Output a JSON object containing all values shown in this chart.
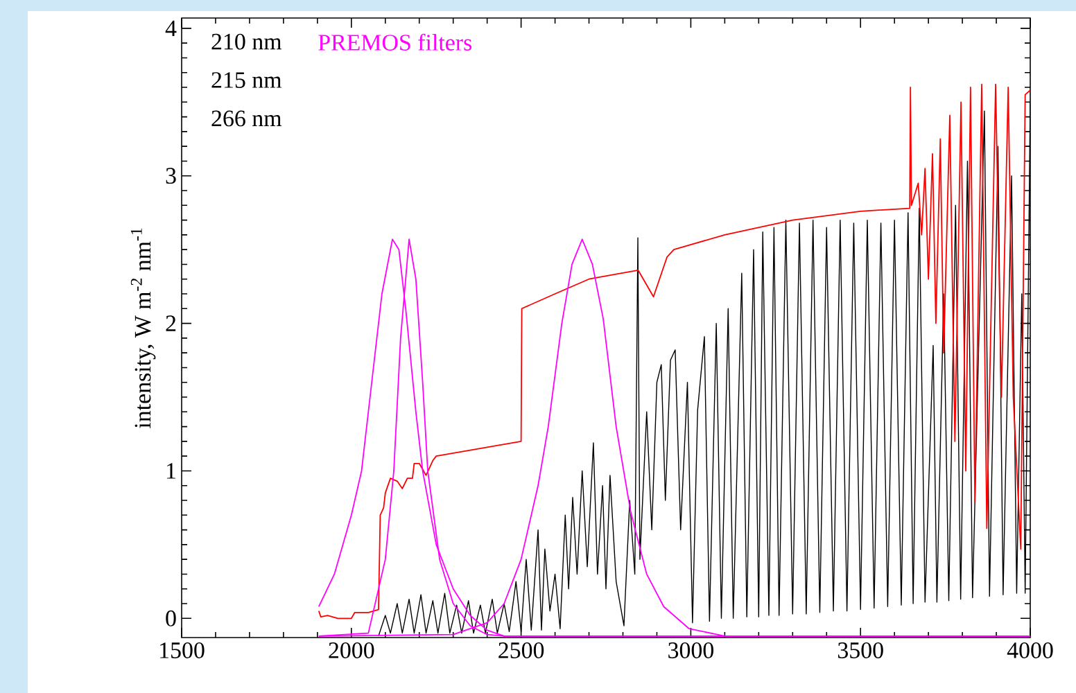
{
  "chart_data": {
    "type": "line",
    "ylabel": "intensity, W m$^{-2}$ nm$^{-1}$",
    "annotations": [
      "210 nm",
      "215 nm",
      "266 nm",
      "PREMOS filters"
    ],
    "xlim": [
      1500,
      4000
    ],
    "xticks": [
      1500,
      2000,
      2500,
      3000,
      3500,
      4000
    ],
    "ylim": [
      -0.13,
      4.07
    ],
    "yticks": [
      0,
      1,
      2,
      3,
      4
    ],
    "grid": false,
    "marker": "none",
    "line_style": "solid",
    "series": [
      {
        "color": "#000000",
        "x": [
          2080,
          2100,
          2115,
          2135,
          2150,
          2170,
          2185,
          2205,
          2220,
          2240,
          2255,
          2275,
          2290,
          2310,
          2325,
          2345,
          2360,
          2380,
          2395,
          2415,
          2430,
          2450,
          2465,
          2485,
          2500,
          2515,
          2530,
          2550,
          2560,
          2570,
          2585,
          2600,
          2615,
          2630,
          2640,
          2652,
          2665,
          2680,
          2695,
          2713,
          2725,
          2740,
          2750,
          2762,
          2780,
          2803,
          2820,
          2835,
          2844,
          2850,
          2870,
          2885,
          2900,
          2913,
          2925,
          2940,
          2954,
          2970,
          2990,
          3005,
          3020,
          3040,
          3055,
          3075,
          3090,
          3110,
          3125,
          3150,
          3165,
          3185,
          3200,
          3212,
          3230,
          3245,
          3260,
          3280,
          3300,
          3320,
          3340,
          3360,
          3380,
          3400,
          3420,
          3440,
          3460,
          3480,
          3500,
          3520,
          3540,
          3560,
          3580,
          3600,
          3620,
          3640,
          3655,
          3673,
          3690,
          3714,
          3725,
          3745,
          3760,
          3780,
          3795,
          3815,
          3830,
          3865,
          3880,
          3905,
          3920,
          3945,
          3960,
          3975,
          3985,
          4000
        ],
        "values": [
          -0.12,
          0.02,
          -0.1,
          0.1,
          -0.1,
          0.13,
          -0.1,
          0.16,
          -0.1,
          0.12,
          -0.1,
          0.17,
          -0.1,
          0.09,
          -0.1,
          0.12,
          -0.1,
          0.09,
          -0.1,
          0.13,
          -0.1,
          0.1,
          -0.09,
          0.25,
          -0.09,
          0.4,
          -0.08,
          0.6,
          -0.08,
          0.47,
          0.05,
          0.3,
          -0.07,
          0.7,
          0.2,
          0.82,
          0.3,
          1.0,
          0.35,
          1.19,
          0.3,
          0.9,
          0.2,
          0.97,
          0.25,
          -0.05,
          0.8,
          0.3,
          2.58,
          0.4,
          1.4,
          0.6,
          1.6,
          1.72,
          0.8,
          1.75,
          1.82,
          0.6,
          1.6,
          -0.03,
          1.41,
          1.91,
          -0.02,
          2.0,
          0.0,
          2.1,
          0.0,
          2.34,
          0.01,
          2.5,
          0.01,
          2.62,
          0.02,
          2.65,
          0.02,
          2.7,
          0.03,
          2.68,
          0.03,
          2.7,
          0.04,
          2.65,
          0.05,
          2.7,
          0.05,
          2.68,
          0.06,
          2.7,
          0.07,
          2.68,
          0.08,
          2.7,
          0.09,
          2.75,
          0.1,
          2.78,
          0.11,
          1.85,
          0.11,
          2.2,
          0.12,
          2.8,
          0.13,
          3.1,
          0.14,
          3.44,
          0.15,
          3.2,
          0.16,
          3.0,
          0.17,
          2.2,
          0.17,
          3.5
        ]
      },
      {
        "color": "#ff0000",
        "x": [
          1904,
          1910,
          1930,
          1960,
          2000,
          2010,
          2050,
          2080,
          2085,
          2095,
          2100,
          2115,
          2135,
          2150,
          2165,
          2180,
          2185,
          2200,
          2220,
          2240,
          2250,
          2500,
          2502,
          2600,
          2700,
          2845,
          2890,
          2930,
          2950,
          3100,
          3300,
          3500,
          3645,
          3647,
          3650,
          3670,
          3680,
          3690,
          3700,
          3712,
          3722,
          3735,
          3745,
          3763,
          3778,
          3796,
          3810,
          3824,
          3837,
          3857,
          3872,
          3898,
          3915,
          3935,
          3950,
          3972,
          3985,
          4000
        ],
        "values": [
          0.05,
          0.01,
          0.02,
          0.0,
          0.0,
          0.04,
          0.04,
          0.06,
          0.7,
          0.75,
          0.85,
          0.95,
          0.93,
          0.88,
          0.95,
          0.95,
          1.05,
          1.05,
          0.97,
          1.07,
          1.1,
          1.2,
          2.1,
          2.2,
          2.3,
          2.36,
          2.18,
          2.45,
          2.5,
          2.6,
          2.7,
          2.76,
          2.78,
          3.6,
          2.8,
          2.95,
          2.6,
          3.05,
          2.3,
          3.15,
          2.0,
          3.25,
          1.8,
          3.41,
          1.2,
          3.5,
          1.0,
          3.6,
          0.79,
          3.62,
          0.61,
          3.62,
          1.5,
          3.6,
          1.5,
          0.47,
          3.55,
          3.58
        ]
      },
      {
        "color": "#ff00ff",
        "x": [
          1904,
          1950,
          2000,
          2030,
          2060,
          2090,
          2121,
          2140,
          2160,
          2190,
          2210,
          2250,
          2300,
          2350,
          2400,
          2450,
          4000
        ],
        "values": [
          0.08,
          0.3,
          0.7,
          1.0,
          1.6,
          2.2,
          2.57,
          2.5,
          2.1,
          1.4,
          1.0,
          0.5,
          0.2,
          0.02,
          -0.08,
          -0.12,
          -0.12
        ]
      },
      {
        "color": "#ff00ff",
        "x": [
          1904,
          2050,
          2100,
          2125,
          2145,
          2170,
          2190,
          2210,
          2225,
          2260,
          2300,
          2350,
          2400,
          2450,
          4000
        ],
        "values": [
          -0.12,
          -0.1,
          0.4,
          1.0,
          1.9,
          2.57,
          2.3,
          1.6,
          1.0,
          0.4,
          0.1,
          -0.05,
          -0.11,
          -0.12,
          -0.12
        ]
      },
      {
        "color": "#ff00ff",
        "x": [
          1904,
          2300,
          2400,
          2450,
          2500,
          2550,
          2580,
          2620,
          2650,
          2680,
          2710,
          2742,
          2780,
          2823,
          2870,
          2920,
          2995,
          3100,
          4000
        ],
        "values": [
          -0.12,
          -0.11,
          -0.03,
          0.1,
          0.4,
          0.9,
          1.3,
          2.0,
          2.4,
          2.57,
          2.4,
          2.03,
          1.3,
          0.72,
          0.3,
          0.08,
          -0.07,
          -0.12,
          -0.12
        ]
      }
    ]
  }
}
